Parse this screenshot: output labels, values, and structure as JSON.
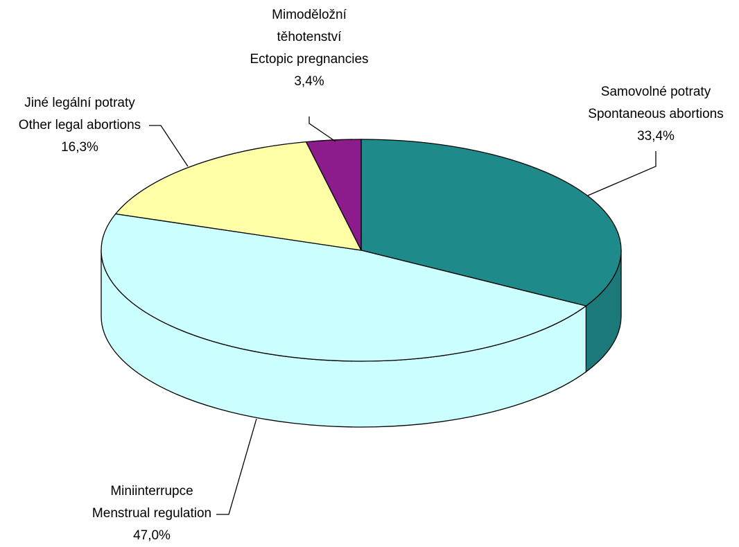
{
  "chart_data": {
    "type": "pie3d",
    "categories": [
      [
        "Samovolné potraty",
        "Spontaneous abortions"
      ],
      [
        "Miniinterrupce",
        "Menstrual regulation"
      ],
      [
        "Jiné legální potraty",
        "Other legal abortions"
      ],
      [
        "Mimoděložní",
        "těhotenství",
        "Ectopic pregnancies"
      ]
    ],
    "values": [
      33.4,
      47.0,
      16.3,
      3.4
    ],
    "value_labels": [
      "33,4%",
      "47,0%",
      "16,3%",
      "3,4%"
    ],
    "colors": [
      "#1f8a8a",
      "#ccffff",
      "#ffffa8",
      "#8c1c8c"
    ]
  }
}
